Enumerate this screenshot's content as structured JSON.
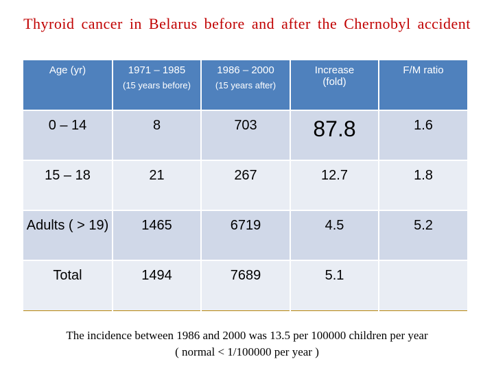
{
  "title": "Thyroid  cancer  in  Belarus  before  and  after  the  Chernobyl  accident",
  "table": {
    "headers": [
      {
        "main": "Age (yr)",
        "sub": ""
      },
      {
        "main": "1971 – 1985",
        "sub": "(15 years before)"
      },
      {
        "main": "1986 – 2000",
        "sub": "(15 years after)"
      },
      {
        "main": "Increase (fold)",
        "sub": ""
      },
      {
        "main": "F/M ratio",
        "sub": ""
      }
    ],
    "rows": [
      [
        "0 – 14",
        "8",
        "703",
        "87.8",
        "1.6"
      ],
      [
        "15 – 18",
        "21",
        "267",
        "12.7",
        "1.8"
      ],
      [
        "Adults ( > 19)",
        "1465",
        "6719",
        "4.5",
        "5.2"
      ],
      [
        "Total",
        "1494",
        "7689",
        "5.1",
        ""
      ]
    ]
  },
  "note": {
    "line1": "The incidence between 1986 and 2000 was 13.5 per 100000 children per year",
    "line2": "( normal < 1/100000 per year )"
  }
}
